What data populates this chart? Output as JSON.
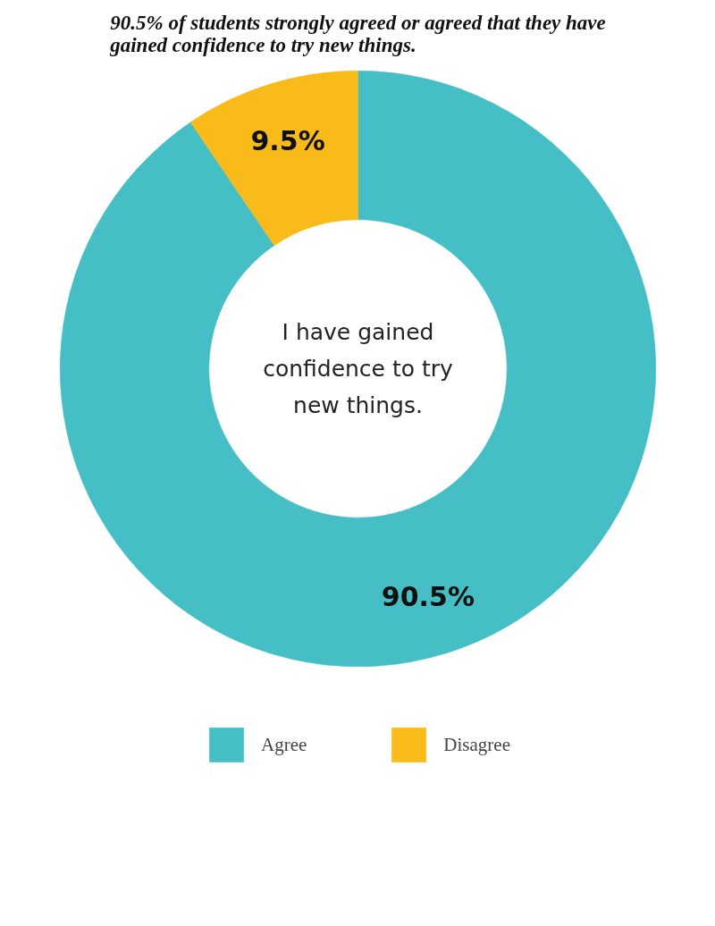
{
  "chart_data": {
    "type": "donut",
    "title": "90.5% of students strongly agreed or agreed that they have gained confidence to try new things.",
    "categories": [
      "Agree",
      "Disagree"
    ],
    "values": [
      90.5,
      9.5
    ],
    "colors": [
      "#45bec6",
      "#f8bb1a"
    ],
    "value_labels": [
      "90.5%",
      "9.5%"
    ],
    "annotations": [
      "I have gained confidence to try new things."
    ],
    "legend": "bottom"
  }
}
